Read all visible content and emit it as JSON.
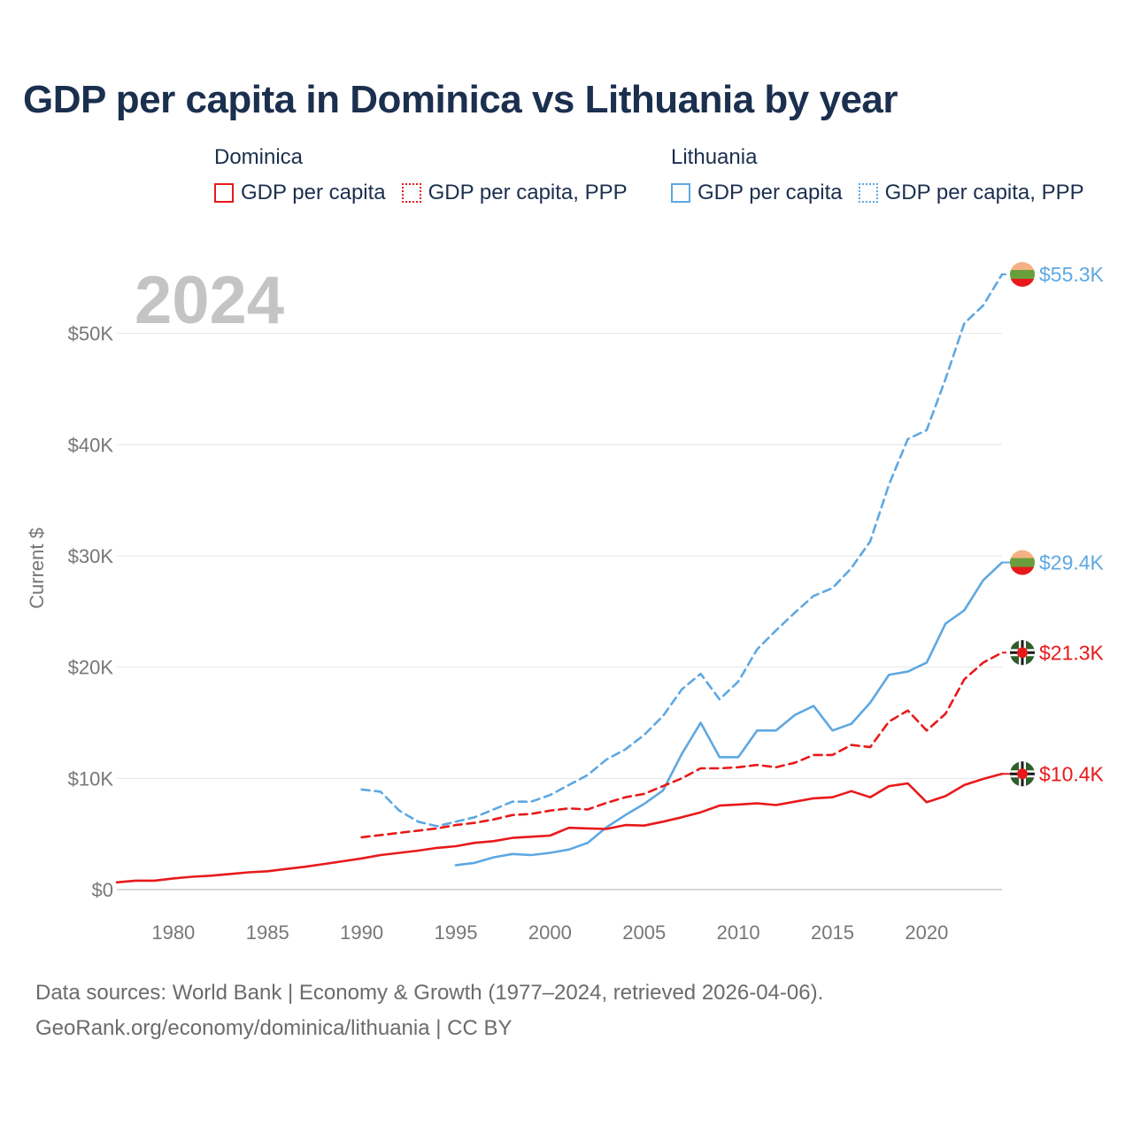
{
  "title": "GDP per capita in Dominica vs Lithuania by year",
  "legend": {
    "groups": [
      {
        "country": "Dominica",
        "color": "#e8191b",
        "items": [
          {
            "label": "GDP per capita",
            "style": "solid"
          },
          {
            "label": "GDP per capita, PPP",
            "style": "dotted"
          }
        ]
      },
      {
        "country": "Lithuania",
        "color": "#5ea8e2",
        "items": [
          {
            "label": "GDP per capita",
            "style": "solid"
          },
          {
            "label": "GDP per capita, PPP",
            "style": "dotted"
          }
        ]
      }
    ]
  },
  "year_watermark": "2024",
  "footer": {
    "line1": "Data sources: World Bank | Economy & Growth (1977–2024, retrieved 2026-04-06).",
    "line2": "GeoRank.org/economy/dominica/lithuania | CC BY"
  },
  "chart_data": {
    "type": "line",
    "title": "GDP per capita in Dominica vs Lithuania by year",
    "xlabel": "",
    "ylabel": "Current $",
    "xlim": [
      1977,
      2024
    ],
    "ylim": [
      0,
      55300
    ],
    "x_ticks": [
      1980,
      1985,
      1990,
      1995,
      2000,
      2005,
      2010,
      2015,
      2020
    ],
    "y_ticks": [
      {
        "value": 0,
        "label": "$0"
      },
      {
        "value": 10000,
        "label": "$10K"
      },
      {
        "value": 20000,
        "label": "$20K"
      },
      {
        "value": 30000,
        "label": "$30K"
      },
      {
        "value": 40000,
        "label": "$40K"
      },
      {
        "value": 50000,
        "label": "$50K"
      }
    ],
    "grid": true,
    "series": [
      {
        "name": "Lithuania GDP per capita, PPP",
        "country": "Lithuania",
        "color": "#5ea8e2",
        "dash": true,
        "end_label": "$55.3K",
        "end_flag": "lithuania",
        "x": [
          1990,
          1991,
          1992,
          1993,
          1994,
          1995,
          1996,
          1997,
          1998,
          1999,
          2000,
          2001,
          2002,
          2003,
          2004,
          2005,
          2006,
          2007,
          2008,
          2009,
          2010,
          2011,
          2012,
          2013,
          2014,
          2015,
          2016,
          2017,
          2018,
          2019,
          2020,
          2021,
          2022,
          2023,
          2024
        ],
        "values": [
          9000,
          8800,
          7100,
          6100,
          5700,
          6100,
          6500,
          7200,
          7900,
          7900,
          8500,
          9400,
          10300,
          11700,
          12600,
          13900,
          15600,
          18000,
          19400,
          17100,
          18700,
          21600,
          23300,
          24900,
          26400,
          27100,
          28900,
          31300,
          36400,
          40500,
          41300,
          45900,
          50900,
          52500,
          55300
        ]
      },
      {
        "name": "Lithuania GDP per capita",
        "country": "Lithuania",
        "color": "#5ea8e2",
        "dash": false,
        "end_label": "$29.4K",
        "end_flag": "lithuania",
        "x": [
          1995,
          1996,
          1997,
          1998,
          1999,
          2000,
          2001,
          2002,
          2003,
          2004,
          2005,
          2006,
          2007,
          2008,
          2009,
          2010,
          2011,
          2012,
          2013,
          2014,
          2015,
          2016,
          2017,
          2018,
          2019,
          2020,
          2021,
          2022,
          2023,
          2024
        ],
        "values": [
          2200,
          2400,
          2900,
          3200,
          3100,
          3300,
          3600,
          4200,
          5600,
          6700,
          7700,
          8900,
          12200,
          15000,
          11900,
          11900,
          14300,
          14300,
          15700,
          16500,
          14300,
          14900,
          16800,
          19300,
          19600,
          20400,
          23900,
          25100,
          27800,
          29400
        ]
      },
      {
        "name": "Dominica GDP per capita, PPP",
        "country": "Dominica",
        "color": "#e8191b",
        "dash": true,
        "end_label": "$21.3K",
        "end_flag": "dominica",
        "x": [
          1990,
          1991,
          1992,
          1993,
          1994,
          1995,
          1996,
          1997,
          1998,
          1999,
          2000,
          2001,
          2002,
          2003,
          2004,
          2005,
          2006,
          2007,
          2008,
          2009,
          2010,
          2011,
          2012,
          2013,
          2014,
          2015,
          2016,
          2017,
          2018,
          2019,
          2020,
          2021,
          2022,
          2023,
          2024
        ],
        "values": [
          4700,
          4900,
          5100,
          5300,
          5500,
          5800,
          6000,
          6300,
          6700,
          6800,
          7100,
          7300,
          7200,
          7800,
          8300,
          8600,
          9300,
          10000,
          10900,
          10900,
          11000,
          11200,
          11000,
          11400,
          12100,
          12100,
          13000,
          12800,
          15100,
          16100,
          14300,
          15800,
          18900,
          20400,
          21300
        ]
      },
      {
        "name": "Dominica GDP per capita",
        "country": "Dominica",
        "color": "#e8191b",
        "dash": false,
        "end_label": "$10.4K",
        "end_flag": "dominica",
        "x": [
          1977,
          1978,
          1979,
          1980,
          1981,
          1982,
          1983,
          1984,
          1985,
          1986,
          1987,
          1988,
          1989,
          1990,
          1991,
          1992,
          1993,
          1994,
          1995,
          1996,
          1997,
          1998,
          1999,
          2000,
          2001,
          2002,
          2003,
          2004,
          2005,
          2006,
          2007,
          2008,
          2009,
          2010,
          2011,
          2012,
          2013,
          2014,
          2015,
          2016,
          2017,
          2018,
          2019,
          2020,
          2021,
          2022,
          2023,
          2024
        ],
        "values": [
          650,
          800,
          800,
          1000,
          1150,
          1250,
          1400,
          1550,
          1650,
          1850,
          2050,
          2300,
          2550,
          2800,
          3100,
          3300,
          3500,
          3750,
          3900,
          4200,
          4350,
          4650,
          4750,
          4850,
          5550,
          5500,
          5450,
          5800,
          5750,
          6100,
          6500,
          6950,
          7550,
          7650,
          7750,
          7600,
          7900,
          8200,
          8300,
          8850,
          8300,
          9300,
          9550,
          7850,
          8400,
          9400,
          9950,
          10400
        ]
      }
    ]
  }
}
